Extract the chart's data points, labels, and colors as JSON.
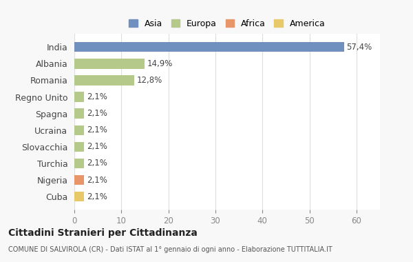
{
  "categories": [
    "Cuba",
    "Nigeria",
    "Turchia",
    "Slovacchia",
    "Ucraina",
    "Spagna",
    "Regno Unito",
    "Romania",
    "Albania",
    "India"
  ],
  "values": [
    2.1,
    2.1,
    2.1,
    2.1,
    2.1,
    2.1,
    2.1,
    12.8,
    14.9,
    57.4
  ],
  "labels": [
    "2,1%",
    "2,1%",
    "2,1%",
    "2,1%",
    "2,1%",
    "2,1%",
    "2,1%",
    "12,8%",
    "14,9%",
    "57,4%"
  ],
  "colors": [
    "#e8c96a",
    "#e8956a",
    "#b5c98a",
    "#b5c98a",
    "#b5c98a",
    "#b5c98a",
    "#b5c98a",
    "#b5c98a",
    "#b5c98a",
    "#7090c0"
  ],
  "continent": [
    "America",
    "Africa",
    "Europa",
    "Europa",
    "Europa",
    "Europa",
    "Europa",
    "Europa",
    "Europa",
    "Asia"
  ],
  "legend_labels": [
    "Asia",
    "Europa",
    "Africa",
    "America"
  ],
  "legend_colors": [
    "#7090c0",
    "#b5c98a",
    "#e8956a",
    "#e8c96a"
  ],
  "title": "Cittadini Stranieri per Cittadinanza",
  "subtitle": "COMUNE DI SALVIROLA (CR) - Dati ISTAT al 1° gennaio di ogni anno - Elaborazione TUTTITALIA.IT",
  "xlim": [
    0,
    65
  ],
  "xticks": [
    0,
    10,
    20,
    30,
    40,
    50,
    60
  ],
  "background_color": "#f8f8f8",
  "bar_background": "#ffffff"
}
